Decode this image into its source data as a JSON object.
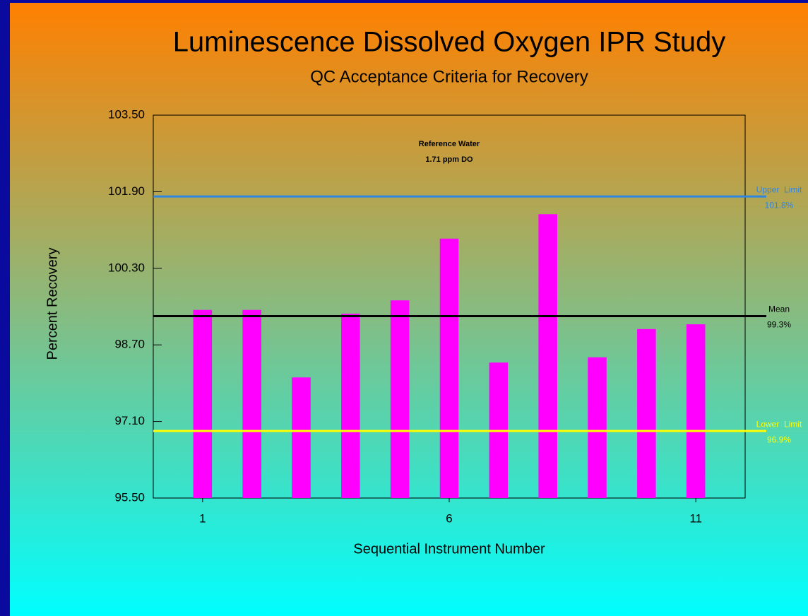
{
  "chart_data": {
    "type": "bar",
    "title": "Luminescence Dissolved Oxygen IPR Study",
    "subtitle": "QC Acceptance Criteria for Recovery",
    "xlabel": "Sequential Instrument Number",
    "ylabel": "Percent Recovery",
    "annotations": [
      "Reference Water",
      "1.71 ppm DO"
    ],
    "x": [
      1,
      2,
      3,
      4,
      5,
      6,
      7,
      8,
      9,
      10,
      11
    ],
    "values": [
      99.43,
      99.43,
      98.02,
      99.35,
      99.63,
      100.92,
      98.33,
      101.43,
      98.44,
      99.03,
      99.13
    ],
    "color": "#ff00ff",
    "xlim": [
      0,
      12
    ],
    "xticks": [
      1,
      6,
      11
    ],
    "ylim": [
      95.5,
      103.5
    ],
    "yticks": [
      {
        "value": 95.5,
        "label": "95.50"
      },
      {
        "value": 97.1,
        "label": "97.10"
      },
      {
        "value": 98.7,
        "label": "98.70"
      },
      {
        "value": 100.3,
        "label": "100.30"
      },
      {
        "value": 101.9,
        "label": "101.90"
      },
      {
        "value": 103.5,
        "label": "103.50"
      }
    ],
    "reference_lines": [
      {
        "name": "Upper  Limit",
        "value": 101.8,
        "value_label": "101.8%",
        "color": "#2f86e0"
      },
      {
        "name": "Mean",
        "value": 99.3,
        "value_label": "99.3%",
        "color": "#000000"
      },
      {
        "name": "Lower  Limit",
        "value": 96.9,
        "value_label": "96.9%",
        "color": "#ffff00"
      }
    ]
  }
}
